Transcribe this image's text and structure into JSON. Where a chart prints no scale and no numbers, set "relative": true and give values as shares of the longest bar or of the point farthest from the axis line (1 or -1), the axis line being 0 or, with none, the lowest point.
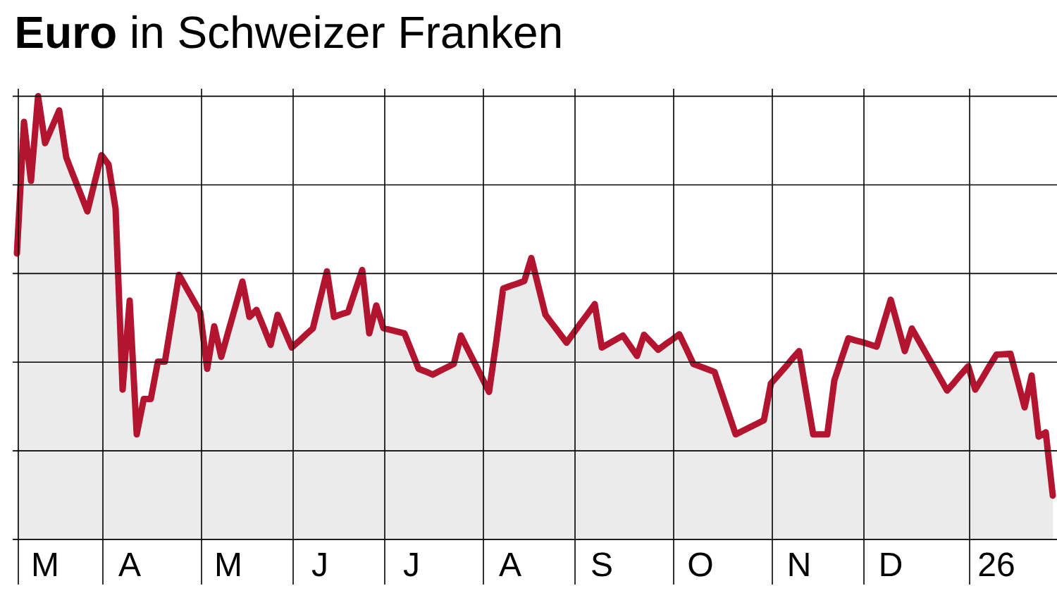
{
  "chart_data": {
    "type": "area",
    "title": "**Euro** in Schweizer Franken",
    "relative": true,
    "grid": true,
    "categories": [
      null,
      null,
      null,
      null,
      "M",
      null,
      null,
      null,
      null,
      null,
      null,
      null,
      null,
      null,
      null,
      null,
      "A",
      null,
      null,
      null,
      null,
      null,
      null,
      null,
      null,
      null,
      null,
      null,
      null,
      null,
      "M",
      null,
      null,
      null,
      null,
      null,
      null,
      null,
      null,
      null,
      null,
      null,
      null,
      "J",
      null,
      null,
      null,
      null,
      null,
      null,
      null,
      null,
      null,
      null,
      null,
      null,
      "J",
      null,
      null,
      null,
      null,
      null,
      null,
      null,
      null,
      null,
      null,
      null,
      null,
      null,
      "A",
      null,
      null,
      null,
      null,
      null,
      null,
      null,
      null,
      null,
      null,
      null,
      null,
      "S",
      null,
      null,
      null,
      null,
      null,
      null,
      null,
      null,
      null,
      null,
      null,
      null,
      null,
      "O",
      null,
      null,
      null,
      null,
      null,
      null,
      null,
      null,
      null,
      null,
      null,
      null,
      null,
      "N",
      null,
      null,
      null,
      null,
      null,
      null,
      null,
      null,
      null,
      null,
      null,
      null,
      "D",
      null,
      null,
      null,
      null,
      null,
      null,
      null,
      null,
      null,
      null,
      null,
      null,
      null,
      null,
      "26",
      null,
      null,
      null,
      null,
      null,
      null,
      null,
      null
    ],
    "color": "#b3142f",
    "values": [
      0.645,
      0.942,
      0.809,
      1.0,
      0.894,
      0.931,
      0.968,
      0.862,
      0.821,
      0.781,
      0.74,
      0.804,
      0.867,
      0.846,
      0.746,
      0.338,
      0.539,
      0.237,
      0.317,
      0.317,
      0.401,
      0.401,
      0.499,
      0.597,
      0.569,
      0.541,
      0.513,
      0.385,
      0.481,
      0.412,
      0.469,
      0.525,
      0.582,
      0.502,
      0.518,
      0.479,
      0.439,
      0.507,
      0.47,
      0.433,
      0.447,
      0.462,
      0.476,
      0.541,
      0.605,
      0.502,
      0.508,
      0.513,
      0.561,
      0.608,
      0.465,
      0.528,
      0.477,
      0.473,
      0.469,
      0.465,
      0.425,
      0.385,
      0.379,
      0.372,
      0.38,
      0.388,
      0.396,
      0.46,
      0.428,
      0.397,
      0.365,
      0.333,
      0.444,
      0.566,
      0.572,
      0.577,
      0.583,
      0.635,
      0.571,
      0.507,
      0.486,
      0.465,
      0.444,
      0.466,
      0.488,
      0.509,
      0.531,
      0.433,
      0.442,
      0.451,
      0.46,
      0.437,
      0.414,
      0.462,
      0.445,
      0.428,
      0.44,
      0.451,
      0.463,
      0.43,
      0.396,
      0.39,
      0.384,
      0.378,
      0.331,
      0.284,
      0.237,
      0.245,
      0.253,
      0.261,
      0.269,
      0.352,
      0.37,
      0.388,
      0.407,
      0.425,
      0.331,
      0.237,
      0.237,
      0.237,
      0.359,
      0.407,
      0.454,
      0.449,
      0.445,
      0.44,
      0.435,
      0.488,
      0.541,
      0.483,
      0.425,
      0.476,
      0.448,
      0.42,
      0.392,
      0.364,
      0.336,
      0.354,
      0.373,
      0.391,
      0.338,
      0.364,
      0.391,
      0.417,
      0.418,
      0.419,
      0.359,
      0.298,
      0.37,
      0.232,
      0.242,
      0.099
    ]
  }
}
